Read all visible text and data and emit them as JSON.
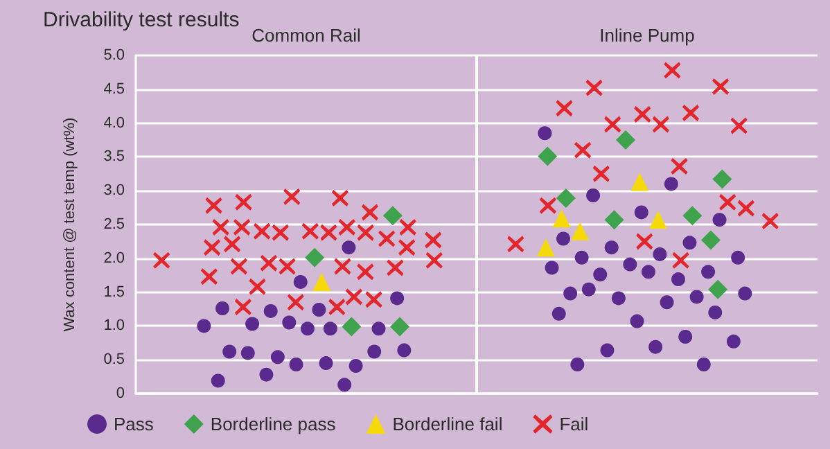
{
  "chart_data": {
    "type": "scatter",
    "title": "Drivability test results",
    "ylabel": "Wax content @ test temp (wt%)",
    "categories": [
      "Common Rail",
      "Inline Pump"
    ],
    "ylim": [
      0,
      5
    ],
    "yticks": [
      0,
      0.5,
      {
        "value": 1,
        "label": "1.0"
      },
      1.5,
      {
        "value": 2,
        "label": "2.0"
      },
      2.5,
      {
        "value": 3,
        "label": "3.0"
      },
      3.5,
      {
        "value": 4,
        "label": "4.0"
      },
      4.5,
      {
        "value": 5,
        "label": "5.0"
      }
    ],
    "grid": "y",
    "legend": "bottom",
    "series": [
      {
        "name": "Pass",
        "color": "#5b2a8e",
        "marker": "circle",
        "x": [
          "Common Rail",
          "Common Rail",
          "Common Rail",
          "Common Rail",
          "Common Rail",
          "Common Rail",
          "Common Rail",
          "Common Rail",
          "Common Rail",
          "Common Rail",
          "Common Rail",
          "Common Rail",
          "Common Rail",
          "Common Rail",
          "Common Rail",
          "Common Rail",
          "Common Rail",
          "Common Rail",
          "Common Rail",
          "Common Rail",
          "Common Rail",
          "Common Rail",
          "Common Rail",
          "Inline Pump",
          "Inline Pump",
          "Inline Pump",
          "Inline Pump",
          "Inline Pump",
          "Inline Pump",
          "Inline Pump",
          "Inline Pump",
          "Inline Pump",
          "Inline Pump",
          "Inline Pump",
          "Inline Pump",
          "Inline Pump",
          "Inline Pump",
          "Inline Pump",
          "Inline Pump",
          "Inline Pump",
          "Inline Pump",
          "Inline Pump",
          "Inline Pump",
          "Inline Pump",
          "Inline Pump",
          "Inline Pump",
          "Inline Pump",
          "Inline Pump",
          "Inline Pump",
          "Inline Pump",
          "Inline Pump",
          "Inline Pump",
          "Inline Pump",
          "Inline Pump",
          "Inline Pump"
        ],
        "values": [
          1.0,
          0.96,
          1.03,
          0.96,
          1.65,
          1.26,
          2.16,
          1.22,
          1.41,
          1.24,
          1.05,
          0.96,
          0.62,
          0.41,
          0.54,
          0.64,
          0.45,
          0.6,
          0.62,
          0.43,
          0.19,
          0.13,
          0.28,
          3.85,
          3.1,
          2.93,
          2.57,
          2.68,
          2.29,
          2.23,
          2.16,
          2.01,
          2.06,
          2.01,
          1.8,
          1.91,
          1.86,
          1.69,
          1.76,
          1.8,
          1.48,
          1.43,
          1.41,
          1.48,
          1.35,
          1.54,
          1.2,
          1.07,
          1.18,
          0.84,
          0.64,
          0.77,
          0.69,
          0.43,
          0.43
        ]
      },
      {
        "name": "Borderline pass",
        "color": "#3fa34d",
        "marker": "diamond",
        "x": [
          "Common Rail",
          "Common Rail",
          "Common Rail",
          "Common Rail",
          "Inline Pump",
          "Inline Pump",
          "Inline Pump",
          "Inline Pump",
          "Inline Pump",
          "Inline Pump",
          "Inline Pump",
          "Inline Pump"
        ],
        "values": [
          2.63,
          2.01,
          0.99,
          0.99,
          3.75,
          3.51,
          3.17,
          2.89,
          2.63,
          2.57,
          2.27,
          1.54
        ]
      },
      {
        "name": "Borderline fail",
        "color": "#f5d90a",
        "marker": "triangle",
        "x": [
          "Common Rail",
          "Inline Pump",
          "Inline Pump",
          "Inline Pump",
          "Inline Pump",
          "Inline Pump"
        ],
        "values": [
          1.65,
          3.13,
          2.59,
          2.57,
          2.4,
          2.16
        ]
      },
      {
        "name": "Fail",
        "color": "#e3262c",
        "marker": "cross",
        "x": [
          "Common Rail",
          "Common Rail",
          "Common Rail",
          "Common Rail",
          "Common Rail",
          "Common Rail",
          "Common Rail",
          "Common Rail",
          "Common Rail",
          "Common Rail",
          "Common Rail",
          "Common Rail",
          "Common Rail",
          "Common Rail",
          "Common Rail",
          "Common Rail",
          "Common Rail",
          "Common Rail",
          "Common Rail",
          "Common Rail",
          "Common Rail",
          "Common Rail",
          "Common Rail",
          "Common Rail",
          "Common Rail",
          "Common Rail",
          "Common Rail",
          "Common Rail",
          "Common Rail",
          "Common Rail",
          "Common Rail",
          "Common Rail",
          "Common Rail",
          "Common Rail",
          "Inline Pump",
          "Inline Pump",
          "Inline Pump",
          "Inline Pump",
          "Inline Pump",
          "Inline Pump",
          "Inline Pump",
          "Inline Pump",
          "Inline Pump",
          "Inline Pump",
          "Inline Pump",
          "Inline Pump",
          "Inline Pump",
          "Inline Pump",
          "Inline Pump",
          "Inline Pump",
          "Inline Pump",
          "Inline Pump",
          "Inline Pump"
        ],
        "values": [
          2.83,
          2.68,
          2.91,
          2.78,
          2.89,
          2.4,
          2.4,
          2.21,
          2.38,
          2.16,
          2.38,
          2.46,
          2.38,
          2.46,
          2.16,
          2.29,
          2.46,
          2.27,
          2.46,
          1.93,
          1.86,
          1.88,
          1.8,
          1.88,
          1.73,
          1.58,
          1.43,
          1.88,
          1.97,
          1.97,
          1.28,
          1.39,
          1.35,
          1.28,
          4.78,
          4.52,
          4.54,
          4.13,
          4.22,
          4.15,
          3.98,
          3.96,
          3.98,
          3.6,
          3.36,
          3.25,
          2.83,
          2.74,
          2.55,
          2.78,
          2.25,
          2.21,
          1.97
        ]
      }
    ]
  }
}
